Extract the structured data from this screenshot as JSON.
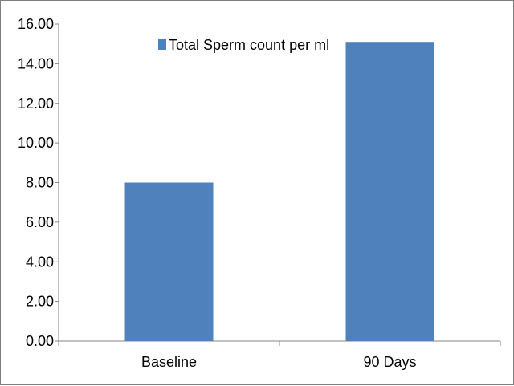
{
  "chart_data": {
    "type": "bar",
    "categories": [
      "Baseline",
      "90 Days"
    ],
    "series": [
      {
        "name": "Total Sperm count per ml",
        "values": [
          8.0,
          15.1
        ],
        "color": "#4f81bd"
      }
    ],
    "ylim": [
      0,
      16
    ],
    "y_ticks": [
      "0.00",
      "2.00",
      "4.00",
      "6.00",
      "8.00",
      "10.00",
      "12.00",
      "14.00",
      "16.00"
    ],
    "y_tick_values": [
      0,
      2,
      4,
      6,
      8,
      10,
      12,
      14,
      16
    ],
    "grid": false,
    "legend_position": "top-center",
    "title": "",
    "xlabel": "",
    "ylabel": ""
  }
}
